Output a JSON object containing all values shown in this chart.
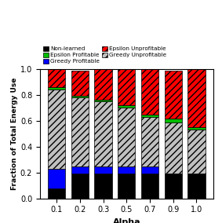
{
  "categories": [
    "0.1",
    "0.2",
    "0.3",
    "0.5",
    "0.7",
    "0.9",
    "1.0"
  ],
  "non_learned": [
    0.08,
    0.19,
    0.19,
    0.19,
    0.19,
    0.19,
    0.19
  ],
  "greedy_profitable": [
    0.15,
    0.06,
    0.06,
    0.06,
    0.06,
    0.0,
    0.0
  ],
  "greedy_unprofitable": [
    0.61,
    0.53,
    0.5,
    0.45,
    0.38,
    0.4,
    0.34
  ],
  "epsilon_profitable": [
    0.02,
    0.015,
    0.015,
    0.02,
    0.02,
    0.025,
    0.02
  ],
  "epsilon_unprofitable": [
    0.14,
    0.195,
    0.235,
    0.28,
    0.35,
    0.375,
    0.45
  ],
  "colors": {
    "non_learned": "#000000",
    "greedy_profitable": "#0000ff",
    "greedy_unprofitable": "#c0c0c0",
    "epsilon_profitable": "#00bb00",
    "epsilon_unprofitable": "#ff0000"
  },
  "ylabel": "Fraction of Total Energy Use",
  "xlabel": "Alpha",
  "ylim": [
    0.0,
    1.0
  ],
  "yticks": [
    0.0,
    0.2,
    0.4,
    0.6,
    0.8,
    1.0
  ],
  "legend_labels": [
    "Non-learned",
    "Epsilon Profitable",
    "Greedy Profitable",
    "Epsilon Unprofitable",
    "Greedy Unprofitable"
  ],
  "figsize": [
    2.83,
    2.84
  ],
  "dpi": 100
}
